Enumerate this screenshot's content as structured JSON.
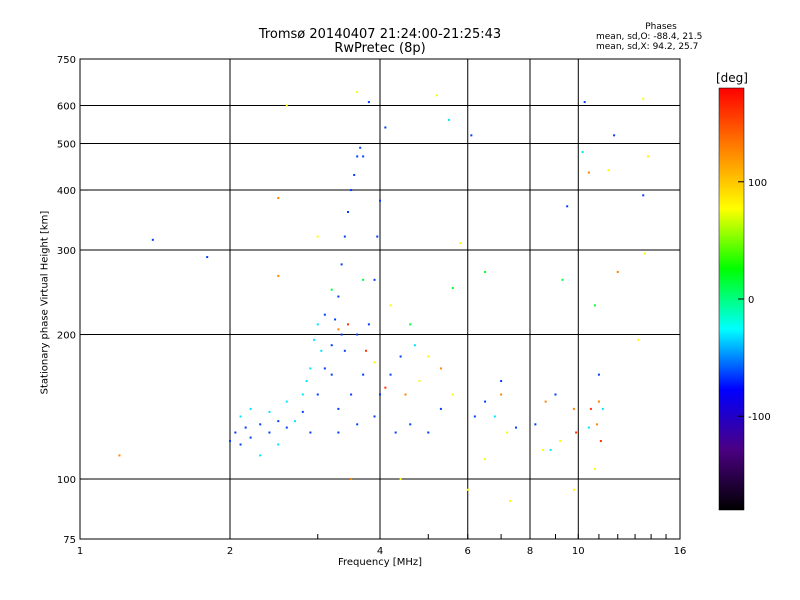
{
  "chart_data": {
    "type": "scatter",
    "title": "Tromsø 20140407 21:24:00-21:25:43",
    "subtitle": "RwPretec (8p)",
    "xlabel": "Frequency [MHz]",
    "ylabel": "Stationary phase Virtual Height [km]",
    "x_scale": "log",
    "y_scale": "log",
    "xlim": [
      1,
      16
    ],
    "ylim": [
      75,
      750
    ],
    "x_ticks": [
      1,
      2,
      4,
      6,
      8,
      10,
      16
    ],
    "y_ticks": [
      75,
      100,
      200,
      300,
      400,
      500,
      600,
      750
    ],
    "x_gridlines": [
      2,
      4,
      6,
      8,
      10
    ],
    "y_gridlines": [
      100,
      200,
      300,
      400,
      500,
      600
    ],
    "grid": true,
    "phases": {
      "heading": "Phases",
      "line_o": "mean, sd,O: -88.4, 21.5",
      "line_x": "mean, sd,X:  94.2, 25.7"
    },
    "colorbar": {
      "unit": "[deg]",
      "ticks": [
        "100",
        "0",
        "-100"
      ],
      "tick_values": [
        100,
        0,
        -100
      ],
      "range": [
        -180,
        180
      ],
      "colors": [
        "#ff0000",
        "#ff8000",
        "#ffff00",
        "#00ff00",
        "#00ffff",
        "#0000ff",
        "#4b0082",
        "#000000"
      ]
    },
    "series": [
      {
        "points": [
          [
            2.0,
            120
          ],
          [
            2.05,
            125
          ],
          [
            2.1,
            118
          ],
          [
            2.15,
            128
          ],
          [
            2.2,
            122
          ],
          [
            2.3,
            130
          ],
          [
            2.4,
            125
          ],
          [
            2.5,
            132
          ],
          [
            2.6,
            128
          ],
          [
            2.8,
            138
          ],
          [
            3.0,
            150
          ],
          [
            3.1,
            170
          ],
          [
            3.2,
            190
          ],
          [
            3.25,
            215
          ],
          [
            3.3,
            240
          ],
          [
            3.35,
            280
          ],
          [
            3.4,
            320
          ],
          [
            3.45,
            360
          ],
          [
            3.5,
            400
          ],
          [
            3.55,
            430
          ],
          [
            3.6,
            470
          ],
          [
            3.65,
            490
          ],
          [
            3.7,
            470
          ],
          [
            3.2,
            165
          ],
          [
            3.4,
            185
          ],
          [
            3.6,
            200
          ],
          [
            3.8,
            210
          ],
          [
            3.3,
            125
          ],
          [
            3.6,
            130
          ],
          [
            3.9,
            135
          ],
          [
            4.0,
            150
          ],
          [
            4.2,
            165
          ],
          [
            4.4,
            180
          ],
          [
            3.9,
            260
          ],
          [
            3.95,
            320
          ],
          [
            4.0,
            380
          ],
          [
            4.3,
            125
          ],
          [
            4.6,
            130
          ],
          [
            5.0,
            125
          ],
          [
            5.3,
            140
          ],
          [
            3.3,
            140
          ],
          [
            3.5,
            150
          ],
          [
            3.7,
            165
          ],
          [
            3.1,
            220
          ],
          [
            3.35,
            200
          ],
          [
            2.9,
            125
          ],
          [
            1.8,
            290
          ],
          [
            1.4,
            315
          ],
          [
            6.2,
            135
          ],
          [
            6.5,
            145
          ],
          [
            7.0,
            160
          ],
          [
            7.5,
            128
          ],
          [
            8.2,
            130
          ],
          [
            9.0,
            150
          ],
          [
            11.0,
            165
          ],
          [
            11.8,
            520
          ],
          [
            10.3,
            610
          ],
          [
            13.5,
            390
          ],
          [
            9.5,
            370
          ],
          [
            6.1,
            520
          ],
          [
            4.1,
            540
          ],
          [
            3.8,
            610
          ]
        ]
      },
      {
        "points": [
          [
            2.1,
            135
          ],
          [
            2.2,
            140
          ],
          [
            2.4,
            138
          ],
          [
            2.6,
            145
          ],
          [
            2.8,
            150
          ],
          [
            2.9,
            170
          ],
          [
            2.95,
            195
          ],
          [
            3.0,
            210
          ],
          [
            2.5,
            118
          ],
          [
            2.3,
            112
          ],
          [
            2.7,
            132
          ],
          [
            3.05,
            185
          ],
          [
            2.85,
            160
          ],
          [
            6.8,
            135
          ],
          [
            10.5,
            128
          ],
          [
            11.2,
            140
          ],
          [
            4.7,
            190
          ],
          [
            8.8,
            115
          ],
          [
            10.2,
            480
          ],
          [
            5.5,
            560
          ]
        ]
      },
      {
        "points": [
          [
            3.6,
            640
          ],
          [
            4.2,
            230
          ],
          [
            3.9,
            175
          ],
          [
            4.8,
            160
          ],
          [
            5.0,
            180
          ],
          [
            5.6,
            150
          ],
          [
            6.5,
            110
          ],
          [
            7.2,
            125
          ],
          [
            8.5,
            115
          ],
          [
            9.2,
            120
          ],
          [
            10.8,
            105
          ],
          [
            13.5,
            620
          ],
          [
            13.8,
            470
          ],
          [
            13.6,
            295
          ],
          [
            13.2,
            195
          ],
          [
            6.0,
            95
          ],
          [
            7.3,
            90
          ],
          [
            4.4,
            100
          ],
          [
            5.8,
            310
          ],
          [
            11.5,
            440
          ],
          [
            9.8,
            95
          ],
          [
            2.6,
            600
          ],
          [
            5.2,
            630
          ],
          [
            3.0,
            320
          ]
        ]
      },
      {
        "points": [
          [
            3.2,
            248
          ],
          [
            3.7,
            260
          ],
          [
            5.6,
            250
          ],
          [
            9.3,
            260
          ],
          [
            10.8,
            230
          ],
          [
            4.6,
            210
          ],
          [
            6.5,
            270
          ]
        ]
      },
      {
        "points": [
          [
            2.5,
            265
          ],
          [
            2.5,
            385
          ],
          [
            3.3,
            205
          ],
          [
            4.5,
            150
          ],
          [
            5.3,
            170
          ],
          [
            7.0,
            150
          ],
          [
            9.8,
            140
          ],
          [
            10.9,
            130
          ],
          [
            10.5,
            435
          ],
          [
            12.0,
            270
          ],
          [
            1.2,
            112
          ],
          [
            11.0,
            145
          ],
          [
            3.5,
            100
          ],
          [
            8.6,
            145
          ]
        ]
      },
      {
        "points": [
          [
            3.45,
            210
          ],
          [
            3.75,
            185
          ],
          [
            4.1,
            155
          ],
          [
            10.6,
            140
          ],
          [
            11.1,
            120
          ],
          [
            9.9,
            125
          ]
        ]
      }
    ],
    "series_phase_deg": [
      -110,
      -60,
      100,
      10,
      140,
      165
    ]
  }
}
